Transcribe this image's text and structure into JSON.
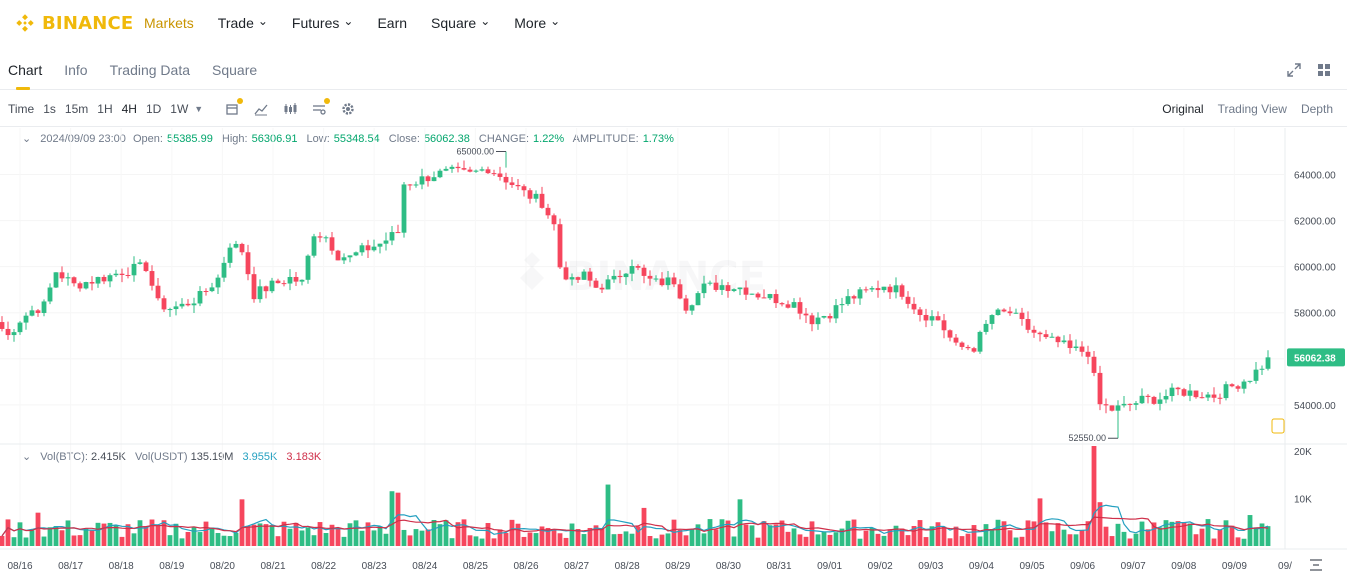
{
  "nav": {
    "logo": "BINANCE",
    "items": [
      {
        "label": "Markets",
        "active": true,
        "caret": false
      },
      {
        "label": "Trade",
        "active": false,
        "caret": true
      },
      {
        "label": "Futures",
        "active": false,
        "caret": true
      },
      {
        "label": "Earn",
        "active": false,
        "caret": false
      },
      {
        "label": "Square",
        "active": false,
        "caret": true
      },
      {
        "label": "More",
        "active": false,
        "caret": true
      }
    ]
  },
  "subtabs": [
    "Chart",
    "Info",
    "Trading Data",
    "Square"
  ],
  "toolbar": {
    "time_label": "Time",
    "intervals": [
      "1s",
      "15m",
      "1H",
      "4H",
      "1D",
      "1W"
    ],
    "active_interval": "4H",
    "views": [
      "Original",
      "Trading View",
      "Depth"
    ],
    "active_view": "Original"
  },
  "ohlc": {
    "date": "2024/09/09 23:00",
    "open_label": "Open:",
    "open": "55385.99",
    "high_label": "High:",
    "high": "56306.91",
    "low_label": "Low:",
    "low": "55348.54",
    "close_label": "Close:",
    "close": "56062.38",
    "change_label": "CHANGE:",
    "change": "1.22%",
    "amplitude_label": "AMPLITUDE:",
    "amplitude": "1.73%"
  },
  "volume": {
    "btc_label": "Vol(BTC):",
    "btc": "2.415K",
    "usdt_label": "Vol(USDT)",
    "usdt": "135.19M",
    "ma1": "3.955K",
    "ma2": "3.183K"
  },
  "colors": {
    "up": "#2ebd85",
    "down": "#f6465d",
    "accent": "#f0b90b",
    "ma1": "#24a0c0",
    "ma2": "#cf304a"
  },
  "chart_data": {
    "type": "candlestick",
    "price_axis": {
      "ticks": [
        64000,
        62000,
        60000,
        58000,
        56000,
        54000
      ],
      "tick_labels": [
        "64000.00",
        "62000.00",
        "60000.00",
        "58000.00",
        "56000.00",
        "54000.00"
      ],
      "range": [
        52300,
        65500
      ]
    },
    "volume_axis": {
      "ticks": [
        20000,
        10000
      ],
      "tick_labels": [
        "20K",
        "10K"
      ],
      "range": [
        0,
        21000
      ]
    },
    "x_labels": [
      "08/16",
      "08/17",
      "08/18",
      "08/19",
      "08/20",
      "08/21",
      "08/22",
      "08/23",
      "08/24",
      "08/25",
      "08/26",
      "08/27",
      "08/28",
      "08/29",
      "08/30",
      "08/31",
      "09/01",
      "09/02",
      "09/03",
      "09/04",
      "09/05",
      "09/06",
      "09/07",
      "09/08",
      "09/09",
      "09/"
    ],
    "last_price_label": "56062.38",
    "last_price": 56062.38,
    "high_marker": {
      "label": "65000.00",
      "value": 65000
    },
    "low_marker": {
      "label": "52550.00",
      "value": 52550
    },
    "candles_per_day": 6,
    "close_path": [
      [
        0,
        57300
      ],
      [
        1,
        57000
      ],
      [
        3,
        57700
      ],
      [
        5,
        58100
      ],
      [
        7,
        58300
      ],
      [
        9,
        59800
      ],
      [
        12,
        59200
      ],
      [
        15,
        59400
      ],
      [
        18,
        59600
      ],
      [
        20,
        59800
      ],
      [
        22,
        59900
      ],
      [
        24,
        60000
      ],
      [
        26,
        58400
      ],
      [
        28,
        58200
      ],
      [
        30,
        58300
      ],
      [
        33,
        58700
      ],
      [
        36,
        59500
      ],
      [
        38,
        61000
      ],
      [
        40,
        60700
      ],
      [
        42,
        58800
      ],
      [
        45,
        59200
      ],
      [
        48,
        59500
      ],
      [
        50,
        59300
      ],
      [
        52,
        61500
      ],
      [
        54,
        61300
      ],
      [
        56,
        60500
      ],
      [
        58,
        60400
      ],
      [
        60,
        60700
      ],
      [
        63,
        61000
      ],
      [
        66,
        61500
      ],
      [
        67,
        63600
      ],
      [
        69,
        63700
      ],
      [
        72,
        64000
      ],
      [
        75,
        64100
      ],
      [
        78,
        64000
      ],
      [
        81,
        64300
      ],
      [
        84,
        63800
      ],
      [
        87,
        63200
      ],
      [
        90,
        62800
      ],
      [
        92,
        61800
      ],
      [
        93,
        60000
      ],
      [
        95,
        59300
      ],
      [
        97,
        59600
      ],
      [
        99,
        59100
      ],
      [
        102,
        59400
      ],
      [
        105,
        60200
      ],
      [
        107,
        59500
      ],
      [
        109,
        59300
      ],
      [
        112,
        59400
      ],
      [
        114,
        58300
      ],
      [
        117,
        59100
      ],
      [
        120,
        59200
      ],
      [
        123,
        59100
      ],
      [
        126,
        58800
      ],
      [
        129,
        58600
      ],
      [
        132,
        58400
      ],
      [
        135,
        57700
      ],
      [
        138,
        58000
      ],
      [
        141,
        58600
      ],
      [
        144,
        58900
      ],
      [
        147,
        59200
      ],
      [
        150,
        58900
      ],
      [
        153,
        58000
      ],
      [
        156,
        57700
      ],
      [
        159,
        56500
      ],
      [
        162,
        56500
      ],
      [
        165,
        57900
      ],
      [
        168,
        58000
      ],
      [
        171,
        57300
      ],
      [
        174,
        56800
      ],
      [
        176,
        56700
      ],
      [
        178,
        56400
      ],
      [
        181,
        56300
      ],
      [
        183,
        54000
      ],
      [
        185,
        53800
      ],
      [
        187,
        53900
      ],
      [
        190,
        54200
      ],
      [
        193,
        54300
      ],
      [
        196,
        54600
      ],
      [
        199,
        54500
      ],
      [
        202,
        54400
      ],
      [
        205,
        54800
      ],
      [
        208,
        55200
      ],
      [
        210,
        55700
      ],
      [
        211,
        56062.38
      ]
    ],
    "volume_spikes": [
      [
        6,
        7000
      ],
      [
        40,
        9800
      ],
      [
        65,
        11500
      ],
      [
        66,
        11200
      ],
      [
        101,
        12900
      ],
      [
        107,
        8000
      ],
      [
        123,
        9800
      ],
      [
        173,
        10000
      ],
      [
        182,
        21000
      ],
      [
        183,
        9200
      ],
      [
        208,
        6500
      ]
    ]
  }
}
